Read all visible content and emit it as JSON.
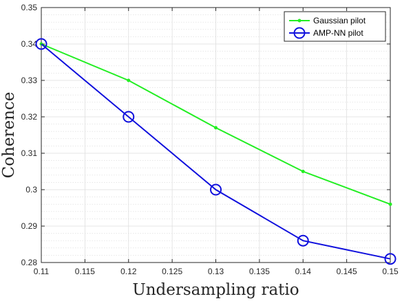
{
  "chart_data": {
    "type": "line",
    "title": "",
    "xlabel": "Undersampling ratio",
    "ylabel": "Coherence",
    "xlim": [
      0.11,
      0.15
    ],
    "ylim": [
      0.28,
      0.35
    ],
    "xticks": [
      0.11,
      0.115,
      0.12,
      0.125,
      0.13,
      0.135,
      0.14,
      0.145,
      0.15
    ],
    "xtick_labels": [
      "0.11",
      "0.115",
      "0.12",
      "0.125",
      "0.13",
      "0.135",
      "0.14",
      "0.145",
      "0.15"
    ],
    "yticks": [
      0.28,
      0.29,
      0.3,
      0.31,
      0.32,
      0.33,
      0.34,
      0.35
    ],
    "ytick_labels": [
      "0.28",
      "0.29",
      "0.3",
      "0.31",
      "0.32",
      "0.33",
      "0.34",
      "0.35"
    ],
    "grid": true,
    "minor_grid": true,
    "legend_position": "top-right",
    "x": [
      0.11,
      0.12,
      0.13,
      0.14,
      0.15
    ],
    "series": [
      {
        "name": "Gaussian pilot",
        "color": "#22ee22",
        "marker": "dot",
        "values": [
          0.34,
          0.33,
          0.317,
          0.305,
          0.296
        ]
      },
      {
        "name": "AMP-NN pilot",
        "color": "#1010dd",
        "marker": "circle",
        "values": [
          0.34,
          0.32,
          0.3,
          0.286,
          0.281
        ]
      }
    ]
  }
}
